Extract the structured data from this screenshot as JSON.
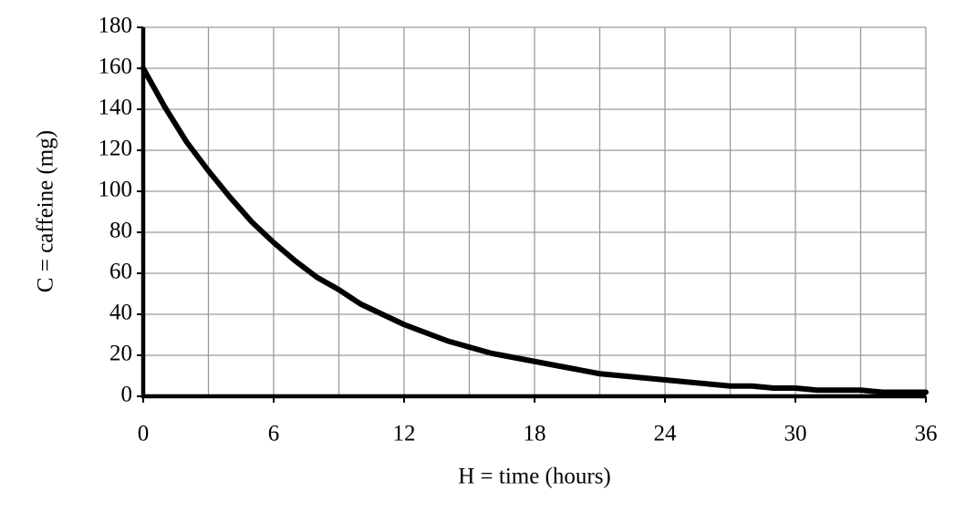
{
  "chart_data": {
    "type": "line",
    "xlabel": "H = time (hours)",
    "ylabel": "C = caffeine (mg)",
    "x": [
      0,
      1,
      2,
      3,
      4,
      5,
      6,
      7,
      8,
      9,
      10,
      11,
      12,
      13,
      14,
      15,
      16,
      17,
      18,
      19,
      20,
      21,
      22,
      23,
      24,
      25,
      26,
      27,
      28,
      29,
      30,
      31,
      32,
      33,
      34,
      35,
      36
    ],
    "series": [
      {
        "color": "#000000",
        "values": [
          160,
          141,
          124,
          110,
          97,
          85,
          75,
          66,
          58,
          52,
          45,
          40,
          35,
          31,
          27,
          24,
          21,
          19,
          17,
          15,
          13,
          11,
          10,
          9,
          8,
          7,
          6,
          5,
          5,
          4,
          4,
          3,
          3,
          3,
          2,
          2,
          2
        ]
      }
    ],
    "xlim": [
      0,
      36
    ],
    "xticks": [
      0,
      6,
      12,
      18,
      24,
      30,
      36
    ],
    "xgrid": [
      0,
      3,
      6,
      9,
      12,
      15,
      18,
      21,
      24,
      27,
      30,
      33,
      36
    ],
    "ylim": [
      0,
      180
    ],
    "yticks": [
      0,
      20,
      40,
      60,
      80,
      100,
      120,
      140,
      160,
      180
    ],
    "grid": true
  }
}
